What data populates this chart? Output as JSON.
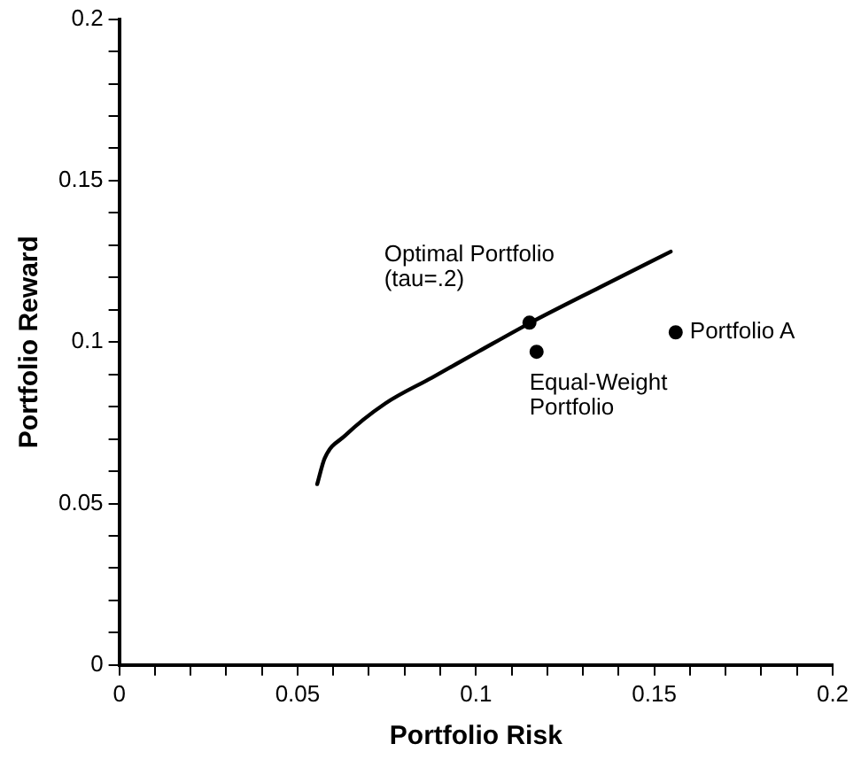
{
  "chart_data": {
    "type": "line",
    "xlabel": "Portfolio Risk",
    "ylabel": "Portfolio Reward",
    "xlim": [
      0,
      0.2
    ],
    "ylim": [
      0,
      0.2
    ],
    "xticks": [
      0,
      {
        "value": 0.01,
        "label": null
      },
      {
        "value": 0.02,
        "label": null
      },
      {
        "value": 0.03,
        "label": null
      },
      {
        "value": 0.04,
        "label": null
      },
      0.05,
      {
        "value": 0.06,
        "label": null
      },
      {
        "value": 0.07,
        "label": null
      },
      {
        "value": 0.08,
        "label": null
      },
      {
        "value": 0.09,
        "label": null
      },
      0.1,
      {
        "value": 0.11,
        "label": null
      },
      {
        "value": 0.12,
        "label": null
      },
      {
        "value": 0.13,
        "label": null
      },
      {
        "value": 0.14,
        "label": null
      },
      0.15,
      {
        "value": 0.16,
        "label": null
      },
      {
        "value": 0.17,
        "label": null
      },
      {
        "value": 0.18,
        "label": null
      },
      {
        "value": 0.19,
        "label": null
      },
      0.2
    ],
    "yticks": [
      0,
      {
        "value": 0.01,
        "label": null
      },
      {
        "value": 0.02,
        "label": null
      },
      {
        "value": 0.03,
        "label": null
      },
      {
        "value": 0.04,
        "label": null
      },
      0.05,
      {
        "value": 0.06,
        "label": null
      },
      {
        "value": 0.07,
        "label": null
      },
      {
        "value": 0.08,
        "label": null
      },
      {
        "value": 0.09,
        "label": null
      },
      0.1,
      {
        "value": 0.11,
        "label": null
      },
      {
        "value": 0.12,
        "label": null
      },
      {
        "value": 0.13,
        "label": null
      },
      {
        "value": 0.14,
        "label": null
      },
      0.15,
      {
        "value": 0.16,
        "label": null
      },
      {
        "value": 0.17,
        "label": null
      },
      {
        "value": 0.18,
        "label": null
      },
      {
        "value": 0.19,
        "label": null
      },
      0.2
    ],
    "grid": false,
    "legend": false,
    "series": [
      {
        "color": "#000000",
        "marker": "none",
        "line_style": "solid",
        "x": [
          0.0555,
          0.0576,
          0.0633,
          0.0746,
          0.0877,
          0.1006,
          0.1153,
          0.1348,
          0.1546
        ],
        "values": [
          0.056,
          0.064,
          0.071,
          0.081,
          0.089,
          0.097,
          0.106,
          0.117,
          0.128
        ]
      },
      {
        "type": "scatter",
        "color": "#000000",
        "marker": "circle",
        "x": [
          0.115,
          0.117,
          0.156
        ],
        "values": [
          0.106,
          0.097,
          0.103
        ]
      }
    ],
    "annotations": [
      {
        "text": "Optimal Portfolio\n(tau=.2)",
        "x": 0.115,
        "y": 0.106
      },
      {
        "text": "Equal-Weight\nPortfolio",
        "x": 0.117,
        "y": 0.097
      },
      {
        "text": "Portfolio A",
        "x": 0.156,
        "y": 0.103
      }
    ]
  }
}
